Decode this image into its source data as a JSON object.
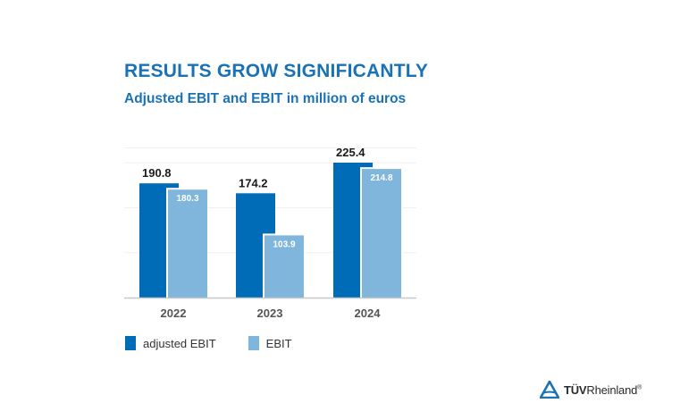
{
  "header": {
    "title": "RESULTS GROW SIGNIFICANTLY",
    "subtitle": "Adjusted EBIT and EBIT in million of euros"
  },
  "colors": {
    "title": "#1a72b5",
    "adjusted_ebit": "#006bb6",
    "ebit": "#80b5dc"
  },
  "chart_data": {
    "type": "bar",
    "title": "RESULTS GROW SIGNIFICANTLY",
    "subtitle": "Adjusted EBIT and EBIT in million of euros",
    "categories": [
      "2022",
      "2023",
      "2024"
    ],
    "series": [
      {
        "name": "adjusted EBIT",
        "values": [
          190.8,
          174.2,
          225.4
        ],
        "labels": [
          "190.8",
          "174.2",
          "225.4"
        ]
      },
      {
        "name": "EBIT",
        "values": [
          180.3,
          103.9,
          214.8
        ],
        "labels": [
          "180.3",
          "103.9",
          "214.8"
        ]
      }
    ],
    "xlabel": "",
    "ylabel": "",
    "ylim": [
      0,
      250
    ],
    "grid": true,
    "legend_position": "bottom-left"
  },
  "legend": {
    "items": [
      {
        "label": "adjusted EBIT"
      },
      {
        "label": "EBIT"
      }
    ]
  },
  "logo": {
    "brand_bold": "TÜV",
    "brand_regular": "Rheinland",
    "registered": "®"
  }
}
